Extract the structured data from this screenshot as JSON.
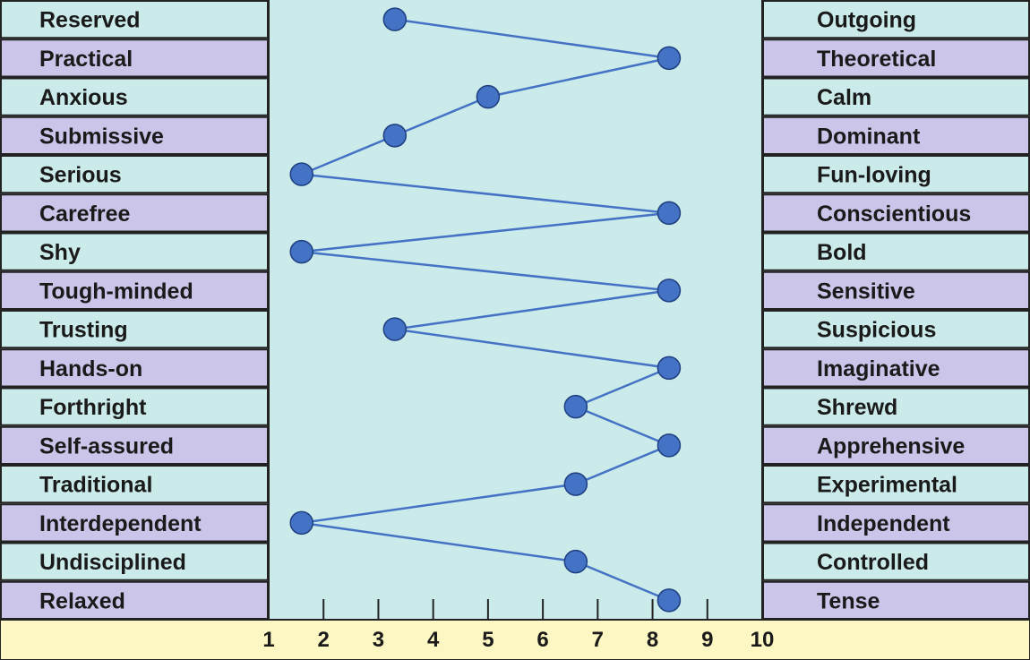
{
  "chart_data": {
    "type": "line",
    "title": "",
    "xlabel": "",
    "ylabel": "",
    "xlim": [
      1,
      10
    ],
    "x_ticks": [
      "1",
      "2",
      "3",
      "4",
      "5",
      "6",
      "7",
      "8",
      "9",
      "10"
    ],
    "left_labels": [
      "Reserved",
      "Practical",
      "Anxious",
      "Submissive",
      "Serious",
      "Carefree",
      "Shy",
      "Tough-minded",
      "Trusting",
      "Hands-on",
      "Forthright",
      "Self-assured",
      "Traditional",
      "Interdependent",
      "Undisciplined",
      "Relaxed"
    ],
    "right_labels": [
      "Outgoing",
      "Theoretical",
      "Calm",
      "Dominant",
      "Fun-loving",
      "Conscientious",
      "Bold",
      "Sensitive",
      "Suspicious",
      "Imaginative",
      "Shrewd",
      "Apprehensive",
      "Experimental",
      "Independent",
      "Controlled",
      "Tense"
    ],
    "values": [
      3.3,
      8.3,
      5.0,
      3.3,
      1.6,
      8.3,
      1.6,
      8.3,
      3.3,
      8.3,
      6.6,
      8.3,
      6.6,
      1.6,
      6.6,
      8.3
    ],
    "grid": false,
    "legend": "none"
  },
  "colors": {
    "row_odd": "#cbeaea",
    "row_even": "#ccc5ea",
    "plot_bg": "#cbeaea",
    "axis_bg": "#fdf7c3",
    "point": "#4472c4",
    "line": "#4472c4",
    "border": "#222222"
  }
}
